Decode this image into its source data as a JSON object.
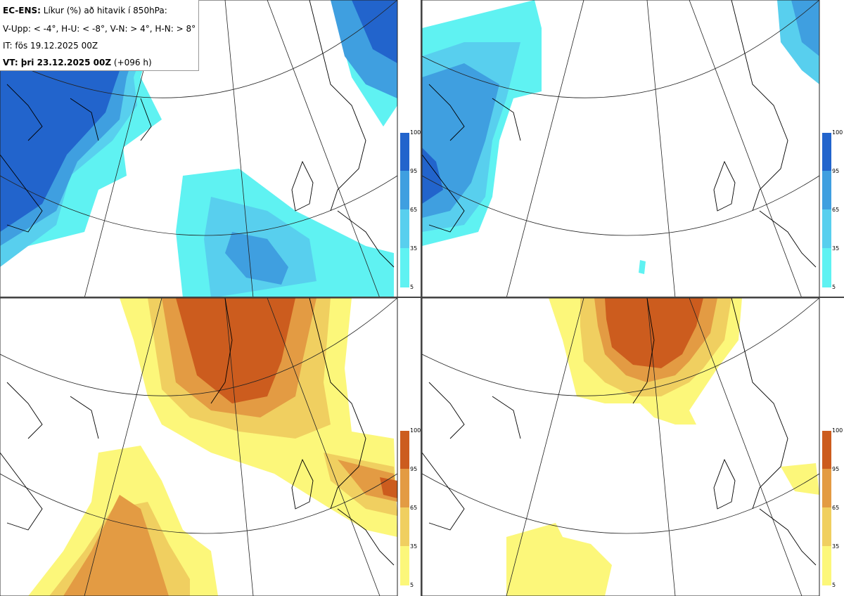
{
  "header": {
    "model": "EC-ENS:",
    "title_rest": "Líkur (%) að hitavik í 850hPa:",
    "thresholds": "V-Upp: < -4°, H-U: < -8°, V-N: > 4°, H-N: > 8°",
    "initial_time": "IT: fös 19.12.2025 00Z",
    "valid_label": "VT: þri 23.12.2025 00Z",
    "lead": "(+096 h)"
  },
  "colors": {
    "blue_5": "#5ff2f2",
    "blue_35": "#58cfee",
    "blue_65": "#3f9fe0",
    "blue_95": "#2264cc",
    "orange_5": "#fcf77a",
    "orange_35": "#f0cf60",
    "orange_65": "#e39b43",
    "orange_95": "#cc5c1e",
    "coast": "#000000"
  },
  "panels": [
    {
      "name": "cold-4",
      "palette": "blue",
      "ticks": [
        "100",
        "95",
        "65",
        "35",
        "5"
      ]
    },
    {
      "name": "cold-8",
      "palette": "blue",
      "ticks": [
        "100",
        "95",
        "65",
        "35",
        "5"
      ]
    },
    {
      "name": "warm-4",
      "palette": "orange",
      "ticks": [
        "100",
        "95",
        "65",
        "35",
        "5"
      ]
    },
    {
      "name": "warm-8",
      "palette": "orange",
      "ticks": [
        "100",
        "95",
        "65",
        "35",
        "5"
      ]
    }
  ]
}
